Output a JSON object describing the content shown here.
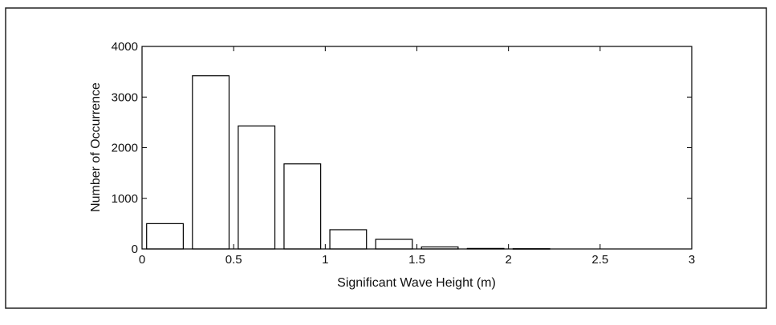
{
  "chart_data": {
    "type": "bar",
    "title": "",
    "xlabel": "Significant Wave Height (m)",
    "ylabel": "Number of Occurrence",
    "xlim": [
      0,
      3
    ],
    "ylim": [
      0,
      4000
    ],
    "x_ticks": [
      "0",
      "0.5",
      "1",
      "1.5",
      "2",
      "2.5",
      "3"
    ],
    "y_ticks": [
      "0",
      "1000",
      "2000",
      "3000",
      "4000"
    ],
    "x_tick_values": [
      0,
      0.5,
      1,
      1.5,
      2,
      2.5,
      3
    ],
    "y_tick_values": [
      0,
      1000,
      2000,
      3000,
      4000
    ],
    "bar_width": 0.2,
    "bar_centers": [
      0.125,
      0.375,
      0.625,
      0.875,
      1.125,
      1.375,
      1.625,
      1.875,
      2.125,
      2.375,
      2.625,
      2.875
    ],
    "values": [
      500,
      3420,
      2430,
      1680,
      380,
      190,
      40,
      10,
      5,
      0,
      0,
      0
    ],
    "grid": false,
    "bar_color": "#ffffff",
    "edge_color": "#000000"
  }
}
